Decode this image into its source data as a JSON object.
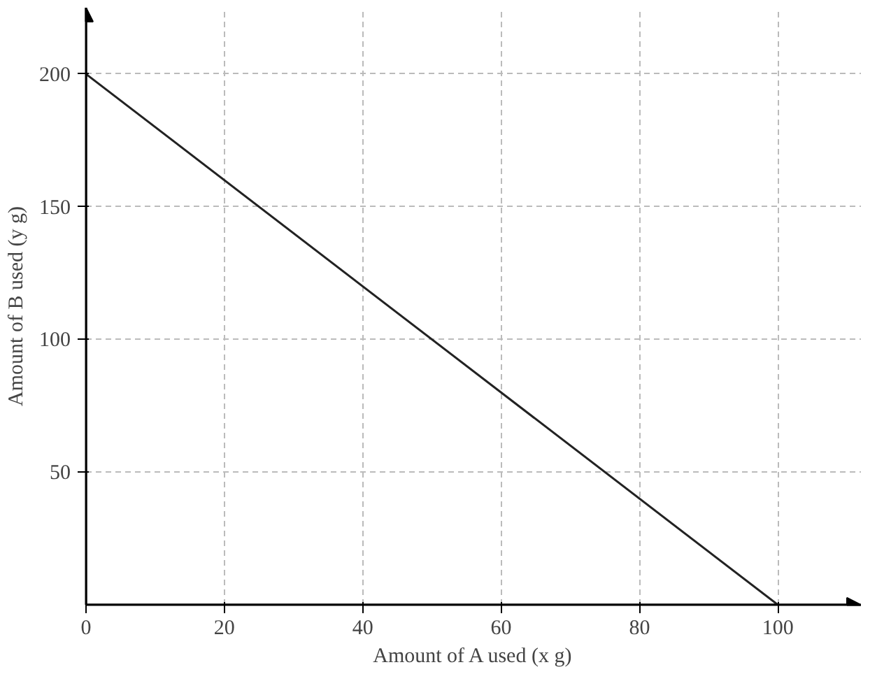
{
  "chart_data": {
    "type": "line",
    "xlabel": "Amount of A used (x g)",
    "ylabel": "Amount of B used (y g)",
    "x": [
      0,
      100
    ],
    "series": [
      {
        "color": "#222222",
        "values": [
          200,
          0
        ]
      }
    ],
    "xlim": [
      0,
      112
    ],
    "ylim": [
      0,
      225
    ],
    "xticks": [
      0,
      20,
      40,
      60,
      80,
      100
    ],
    "yticks": [
      50,
      100,
      150,
      200
    ],
    "grid": true,
    "marker": "none",
    "line_style": "solid"
  }
}
